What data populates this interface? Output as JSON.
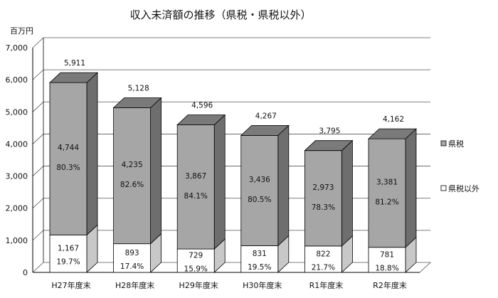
{
  "chart_data": {
    "type": "bar",
    "stacked": true,
    "three_d": true,
    "title": "収入未済額の推移（県税・県税以外）",
    "unit_label": "百万円",
    "categories": [
      "H27年度末",
      "H28年度末",
      "H29年度末",
      "H30年度末",
      "R1年度末",
      "R2年度末"
    ],
    "ylim": [
      0,
      7000
    ],
    "y_ticks": [
      "0",
      "1,000",
      "2,000",
      "3,000",
      "4,000",
      "5,000",
      "6,000",
      "7,000"
    ],
    "grid": true,
    "legend_position": "right",
    "totals": [
      "5,911",
      "5,128",
      "4,596",
      "4,267",
      "3,795",
      "4,162"
    ],
    "series": [
      {
        "name": "県税以外",
        "color": "#ffffff",
        "values": [
          1167,
          893,
          729,
          831,
          822,
          781
        ],
        "value_labels": [
          "1,167",
          "893",
          "729",
          "831",
          "822",
          "781"
        ],
        "percent_labels": [
          "19.7%",
          "17.4%",
          "15.9%",
          "19.5%",
          "21.7%",
          "18.8%"
        ]
      },
      {
        "name": "県税",
        "color": "#a6a6a6",
        "values": [
          4744,
          4235,
          3867,
          3436,
          2973,
          3381
        ],
        "value_labels": [
          "4,744",
          "4,235",
          "3,867",
          "3,436",
          "2,973",
          "3,381"
        ],
        "percent_labels": [
          "80.3%",
          "82.6%",
          "84.1%",
          "80.5%",
          "78.3%",
          "81.2%"
        ]
      }
    ]
  }
}
